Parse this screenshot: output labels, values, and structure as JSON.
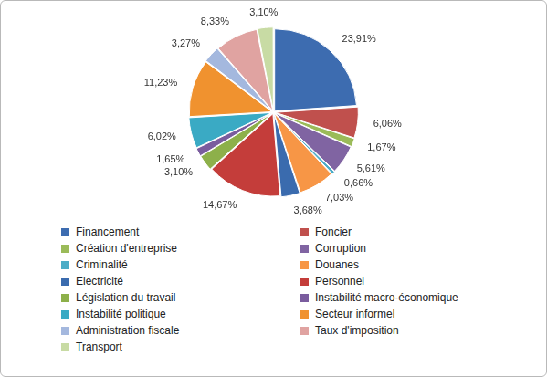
{
  "chart_data": {
    "type": "pie",
    "categories": [
      "Financement",
      "Foncier",
      "Création d'entreprise",
      "Corruption",
      "Criminalité",
      "Douanes",
      "Electricité",
      "Personnel",
      "Législation du travail",
      "Instabilité macro-économique",
      "Instabilité politique",
      "Secteur informel",
      "Administration fiscale",
      "Taux d'imposition",
      "Transport"
    ],
    "values": [
      23.91,
      6.06,
      1.67,
      5.61,
      0.66,
      7.03,
      3.68,
      14.67,
      3.1,
      1.65,
      6.02,
      11.23,
      3.27,
      8.33,
      3.1
    ],
    "value_labels": [
      "23,91%",
      "6,06%",
      "1,67%",
      "5,61%",
      "0,66%",
      "7,03%",
      "3,68%",
      "14,67%",
      "3,10%",
      "1,65%",
      "6,02%",
      "11,23%",
      "3,27%",
      "8,33%",
      "3,10%"
    ],
    "colors": [
      "#3d6cb0",
      "#c0504d",
      "#9bbb59",
      "#8064a2",
      "#4bacc6",
      "#f79646",
      "#3a6bae",
      "#c43d3a",
      "#8db04a",
      "#7a5c9e",
      "#3aaac4",
      "#f0922f",
      "#a4b8de",
      "#e0a3a1",
      "#c8dba4"
    ],
    "data_labels": true,
    "legend": "bottom"
  }
}
